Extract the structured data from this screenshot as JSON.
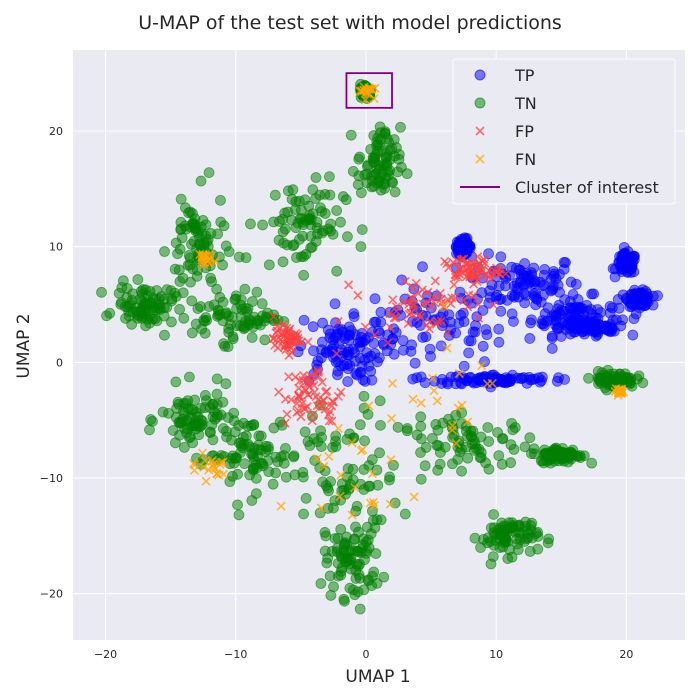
{
  "chart_data": {
    "type": "scatter",
    "title": "U-MAP of the test set with model predictions",
    "xlabel": "UMAP 1",
    "ylabel": "UMAP 2",
    "xlim": [
      -22.5,
      24.5
    ],
    "ylim": [
      -24,
      27
    ],
    "xticks": [
      -20,
      -10,
      0,
      10,
      20
    ],
    "yticks": [
      -20,
      -10,
      0,
      10,
      20
    ],
    "grid": true,
    "legend_position": "top-right",
    "series": [
      {
        "name": "TP",
        "marker": "circle",
        "color": "#0000ff",
        "regions": [
          {
            "center": [
              5,
              3
            ],
            "spread": [
              6.5,
              3
            ]
          },
          {
            "center": [
              12,
              7
            ],
            "spread": [
              4,
              2
            ]
          },
          {
            "center": [
              16,
              4
            ],
            "spread": [
              3,
              1.5
            ]
          },
          {
            "center": [
              7.5,
              10
            ],
            "spread": [
              0.5,
              0.6
            ]
          },
          {
            "center": [
              20,
              8.5
            ],
            "spread": [
              0.7,
              0.8
            ]
          },
          {
            "center": [
              21,
              5.5
            ],
            "spread": [
              0.8,
              0.6
            ]
          },
          {
            "center": [
              17,
              3
            ],
            "spread": [
              2,
              0.6
            ]
          },
          {
            "center": [
              10,
              -1.5
            ],
            "spread": [
              4,
              0.4
            ]
          },
          {
            "center": [
              -2,
              1
            ],
            "spread": [
              3,
              2.5
            ]
          }
        ]
      },
      {
        "name": "TN",
        "marker": "circle",
        "color": "#008000",
        "regions": [
          {
            "center": [
              -2,
              -10
            ],
            "spread": [
              4,
              6
            ]
          },
          {
            "center": [
              -1,
              -17
            ],
            "spread": [
              2,
              3
            ]
          },
          {
            "center": [
              -9,
              -8
            ],
            "spread": [
              3,
              3
            ]
          },
          {
            "center": [
              8,
              -7
            ],
            "spread": [
              5,
              2
            ]
          },
          {
            "center": [
              11,
              -15
            ],
            "spread": [
              2,
              1.5
            ]
          },
          {
            "center": [
              -13,
              -5
            ],
            "spread": [
              2.5,
              2.5
            ]
          },
          {
            "center": [
              -13,
              10
            ],
            "spread": [
              2,
              4
            ]
          },
          {
            "center": [
              -17,
              5
            ],
            "spread": [
              2,
              1.5
            ]
          },
          {
            "center": [
              -5,
              12
            ],
            "spread": [
              3,
              3.5
            ]
          },
          {
            "center": [
              1,
              17
            ],
            "spread": [
              1.5,
              3
            ]
          },
          {
            "center": [
              -10,
              4
            ],
            "spread": [
              3,
              2
            ]
          },
          {
            "center": [
              0,
              23.5
            ],
            "spread": [
              0.4,
              0.5
            ]
          },
          {
            "center": [
              15,
              -8
            ],
            "spread": [
              1.5,
              0.6
            ]
          },
          {
            "center": [
              19,
              -1.5
            ],
            "spread": [
              1.5,
              0.6
            ]
          }
        ]
      },
      {
        "name": "FP",
        "marker": "x",
        "color": "#ff4040",
        "regions": [
          {
            "center": [
              4,
              5
            ],
            "spread": [
              4,
              2
            ]
          },
          {
            "center": [
              -4,
              -3
            ],
            "spread": [
              2,
              2.5
            ]
          },
          {
            "center": [
              8,
              8
            ],
            "spread": [
              2,
              1
            ]
          },
          {
            "center": [
              -6,
              2
            ],
            "spread": [
              1,
              1
            ]
          }
        ]
      },
      {
        "name": "FN",
        "marker": "x",
        "color": "#ffa500",
        "regions": [
          {
            "center": [
              0,
              23.5
            ],
            "spread": [
              0.5,
              0.5
            ]
          },
          {
            "center": [
              -12.5,
              9
            ],
            "spread": [
              0.5,
              0.5
            ]
          },
          {
            "center": [
              -1,
              -10
            ],
            "spread": [
              5,
              5
            ]
          },
          {
            "center": [
              -12,
              -9
            ],
            "spread": [
              1.5,
              1
            ]
          },
          {
            "center": [
              19.5,
              -2.5
            ],
            "spread": [
              0.3,
              0.3
            ]
          },
          {
            "center": [
              5,
              -3
            ],
            "spread": [
              5,
              4
            ]
          }
        ]
      }
    ],
    "annotations": [
      {
        "name": "Cluster of interest",
        "type": "rectangle",
        "color": "#800080",
        "x": [
          -1.5,
          2
        ],
        "y": [
          22,
          25
        ]
      }
    ]
  }
}
